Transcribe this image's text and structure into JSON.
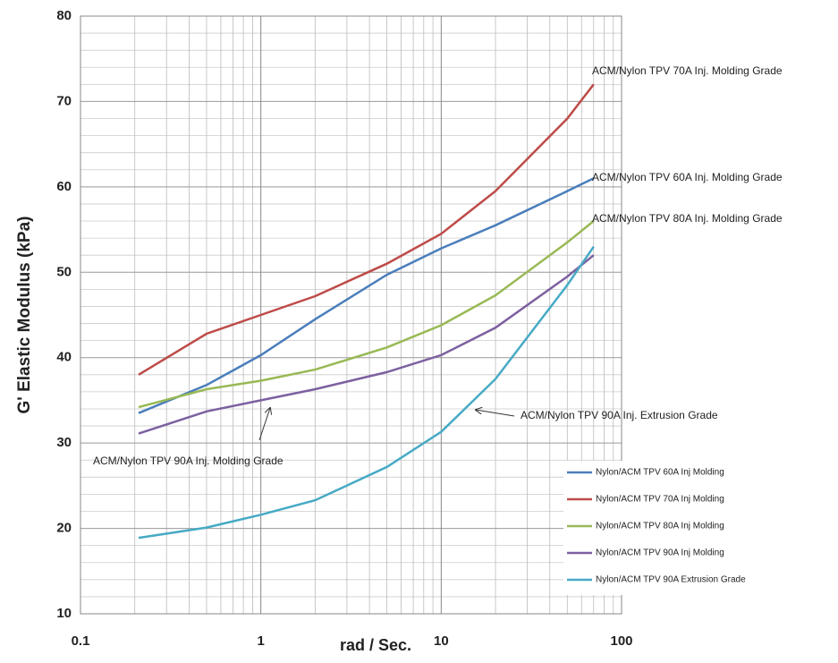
{
  "chart_data": {
    "type": "line",
    "xlabel": "rad / Sec.",
    "ylabel": "G' Elastic Modulus (kPa)",
    "x": [
      0.21,
      0.5,
      1,
      2,
      5,
      10,
      20,
      50,
      70
    ],
    "series": [
      {
        "name": "Nylon/ACM TPV 60A Inj Molding",
        "color": "#4a7ebb",
        "values": [
          33.5,
          36.8,
          40.3,
          44.5,
          49.7,
          52.8,
          55.5,
          59.5,
          61
        ]
      },
      {
        "name": "Nylon/ACM TPV 70A Inj Molding",
        "color": "#be4b48",
        "values": [
          38,
          42.8,
          45,
          47.2,
          51,
          54.5,
          59.5,
          68,
          72
        ]
      },
      {
        "name": "Nylon/ACM TPV 80A Inj Molding",
        "color": "#98b954",
        "values": [
          34.2,
          36.3,
          37.3,
          38.6,
          41.2,
          43.8,
          47.3,
          53.5,
          56
        ]
      },
      {
        "name": "Nylon/ACM TPV 90A Inj Molding",
        "color": "#7d60a0",
        "values": [
          31.1,
          33.7,
          35,
          36.3,
          38.3,
          40.3,
          43.5,
          49.5,
          52
        ]
      },
      {
        "name": "Nylon/ACM TPV 90A Extrusion Grade",
        "color": "#46aac5",
        "values": [
          18.9,
          20.1,
          21.6,
          23.3,
          27.2,
          31.3,
          37.5,
          48.5,
          53
        ]
      }
    ],
    "xlim": [
      0.1,
      100
    ],
    "xticks": [
      0.1,
      1,
      10,
      100
    ],
    "xscale": "log",
    "xminor": [
      0.2,
      0.3,
      0.4,
      0.5,
      0.6,
      0.7,
      0.8,
      0.9,
      2,
      3,
      4,
      5,
      6,
      7,
      8,
      9,
      20,
      30,
      40,
      50,
      60,
      70,
      80,
      90
    ],
    "ylim": [
      10,
      80
    ],
    "yticks": [
      10,
      20,
      30,
      40,
      50,
      60,
      70,
      80
    ],
    "yminor": [
      12,
      14,
      16,
      18,
      22,
      24,
      26,
      28,
      32,
      34,
      36,
      38,
      42,
      44,
      46,
      48,
      52,
      54,
      56,
      58,
      62,
      64,
      66,
      68,
      72,
      74,
      76,
      78
    ],
    "grid": true,
    "legend": "lower right",
    "annotations": [
      "ACM/Nylon TPV 70A Inj. Molding Grade",
      "ACM/Nylon TPV 60A Inj. Molding Grade",
      "ACM/Nylon TPV 80A Inj. Molding Grade",
      "ACM/Nylon TPV 90A Inj. Extrusion Grade",
      "ACM/Nylon TPV 90A Inj. Molding Grade"
    ]
  }
}
